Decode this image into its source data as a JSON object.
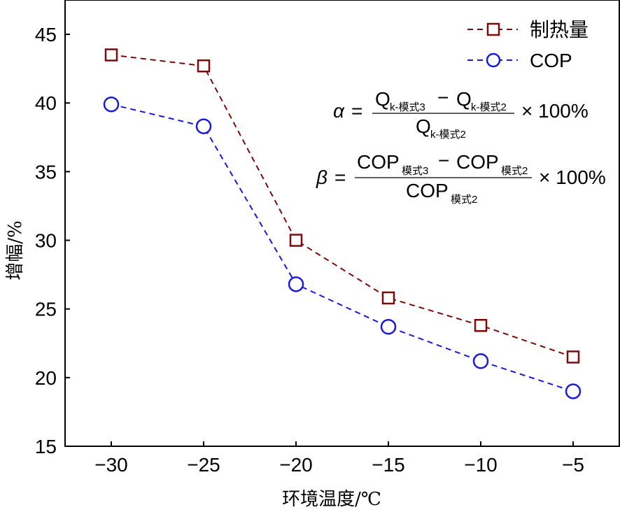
{
  "chart_data": {
    "type": "line",
    "title": "",
    "xlabel": "环境温度/℃",
    "ylabel": "增幅/%",
    "x": [
      -30,
      -25,
      -20,
      -15,
      -10,
      -5
    ],
    "x_tick_labels": [
      "−30",
      "−25",
      "−20",
      "−15",
      "−10",
      "−5"
    ],
    "y_ticks": [
      15,
      20,
      25,
      30,
      35,
      40,
      45
    ],
    "xlim": [
      -32.5,
      -2.5
    ],
    "ylim": [
      15,
      47.5
    ],
    "legend_position": "top-right",
    "series": [
      {
        "name": "制热量",
        "marker": "square",
        "line_style": "dashed",
        "color": "#7b0a0a",
        "values": [
          43.5,
          42.7,
          30.0,
          25.8,
          23.8,
          21.5
        ]
      },
      {
        "name": "COP",
        "marker": "circle",
        "line_style": "dashed",
        "color": "#1a1adc",
        "values": [
          39.9,
          38.3,
          26.8,
          23.7,
          21.2,
          19.0
        ]
      }
    ],
    "annotations": {
      "alpha": {
        "symbol": "α",
        "eq": "=",
        "num_a": "Q",
        "num_a_sub": "k-模式3",
        "minus": "−",
        "num_b": "Q",
        "num_b_sub": "k-模式2",
        "den": "Q",
        "den_sub": "k-模式2",
        "times": "× 100%"
      },
      "beta": {
        "symbol": "β",
        "eq": "=",
        "num_a": "COP",
        "num_a_sub": "模式3",
        "minus": "−",
        "num_b": "COP",
        "num_b_sub": "模式2",
        "den": "COP",
        "den_sub": "模式2",
        "times": "× 100%"
      }
    }
  }
}
